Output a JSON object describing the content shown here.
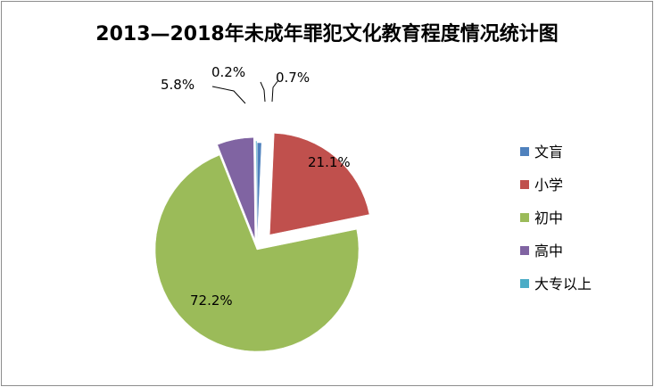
{
  "chart_data": {
    "type": "pie",
    "title": "2013—2018年未成年罪犯文化教育程度情况统计图",
    "legend_position": "right",
    "exploded": true,
    "slices": [
      {
        "label": "文盲",
        "value": 0.7,
        "display": "0.7%",
        "color": "#4f81bd"
      },
      {
        "label": "小学",
        "value": 21.1,
        "display": "21.1%",
        "color": "#c0504d"
      },
      {
        "label": "初中",
        "value": 72.2,
        "display": "72.2%",
        "color": "#9bbb59"
      },
      {
        "label": "高中",
        "value": 5.8,
        "display": "5.8%",
        "color": "#8064a2"
      },
      {
        "label": "大专以上",
        "value": 0.2,
        "display": "0.2%",
        "color": "#4bacc6"
      }
    ]
  }
}
